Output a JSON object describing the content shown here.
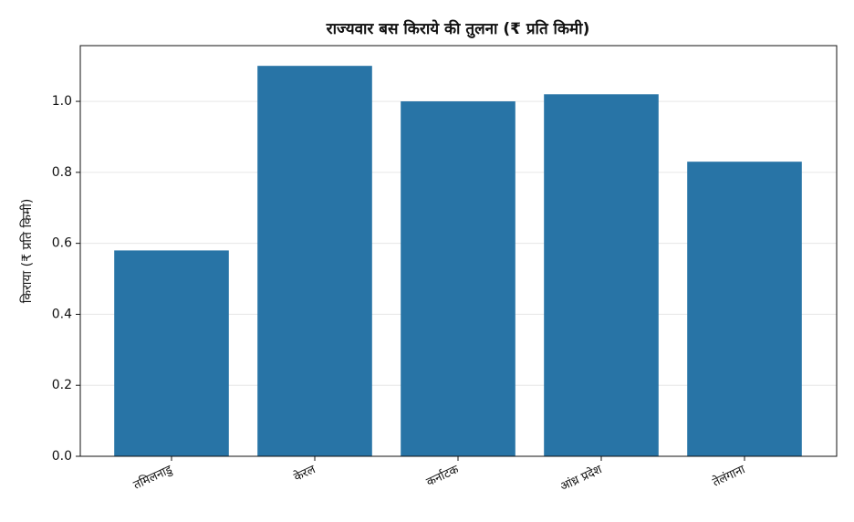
{
  "chart_data": {
    "type": "bar",
    "title": "राज्यवार बस किराये की तुलना (₹ प्रति किमी)",
    "y_label": "किराया (₹ प्रति किमी)",
    "categories": [
      "तमिलनाडु",
      "केरल",
      "कर्नाटक",
      "आंध्र प्रदेश",
      "तेलंगाना"
    ],
    "values": [
      0.58,
      1.1,
      1.0,
      1.02,
      0.83
    ],
    "color": "#2874a6",
    "ylim": [
      0,
      1.157
    ],
    "yticks": [
      {
        "value": 0,
        "label": "0.0"
      },
      0.2,
      0.4,
      0.6,
      0.8,
      {
        "value": 1,
        "label": "1.0"
      }
    ],
    "grid": true
  }
}
